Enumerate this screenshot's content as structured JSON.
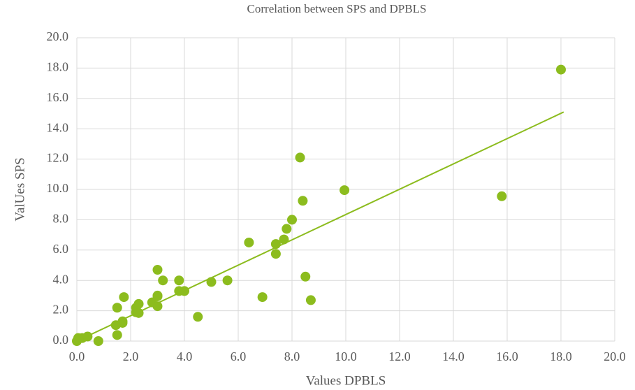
{
  "chart_data": {
    "type": "scatter",
    "title": "Correlation between SPS and DPBLS",
    "x_label": "Values DPBLS",
    "y_label": "ValUes SPS",
    "color": "#8cbc1e",
    "grid": true,
    "x": [
      0,
      0.05,
      0.2,
      0.4,
      0.8,
      1.45,
      1.5,
      1.5,
      1.7,
      1.7,
      1.75,
      2.2,
      2.2,
      2.3,
      2.3,
      2.8,
      3.0,
      3.0,
      3.0,
      3.0,
      3.2,
      3.8,
      3.8,
      4.0,
      4.5,
      5.0,
      5.6,
      6.4,
      6.9,
      7.4,
      7.4,
      7.7,
      7.8,
      8.0,
      8.3,
      8.4,
      8.5,
      8.7,
      9.95,
      15.8,
      18.0
    ],
    "values": [
      0,
      0.2,
      0.2,
      0.3,
      0,
      1.05,
      2.2,
      0.4,
      1.2,
      1.3,
      2.9,
      2.2,
      1.9,
      1.85,
      2.45,
      2.55,
      2.95,
      3.0,
      2.3,
      4.7,
      4.0,
      4.0,
      3.3,
      3.3,
      1.6,
      3.9,
      4.0,
      6.5,
      2.9,
      6.4,
      5.75,
      6.7,
      7.4,
      8.0,
      12.1,
      9.25,
      4.25,
      2.7,
      9.95,
      9.55,
      17.9
    ],
    "trendline": {
      "x": [
        0,
        18.1
      ],
      "y": [
        0,
        15.1
      ]
    },
    "xlim": [
      0,
      20
    ],
    "ylim": [
      0,
      20
    ],
    "xticks": [
      {
        "value": 0,
        "label": "0.0"
      },
      {
        "value": 2,
        "label": "2.0"
      },
      {
        "value": 4,
        "label": "4.0"
      },
      {
        "value": 6,
        "label": "6.0"
      },
      {
        "value": 8,
        "label": "8.0"
      },
      {
        "value": 10,
        "label": "10.0"
      },
      {
        "value": 12,
        "label": "12.0"
      },
      {
        "value": 14,
        "label": "14.0"
      },
      {
        "value": 16,
        "label": "16.0"
      },
      {
        "value": 18,
        "label": "18.0"
      },
      {
        "value": 20,
        "label": "20.0"
      }
    ],
    "yticks": [
      {
        "value": 0,
        "label": "0.0"
      },
      {
        "value": 2,
        "label": "2.0"
      },
      {
        "value": 4,
        "label": "4.0"
      },
      {
        "value": 6,
        "label": "6.0"
      },
      {
        "value": 8,
        "label": "8.0"
      },
      {
        "value": 10,
        "label": "10.0"
      },
      {
        "value": 12,
        "label": "12.0"
      },
      {
        "value": 14,
        "label": "14.0"
      },
      {
        "value": 16,
        "label": "16.0"
      },
      {
        "value": 18,
        "label": "18.0"
      },
      {
        "value": 20,
        "label": "20.0"
      }
    ]
  }
}
